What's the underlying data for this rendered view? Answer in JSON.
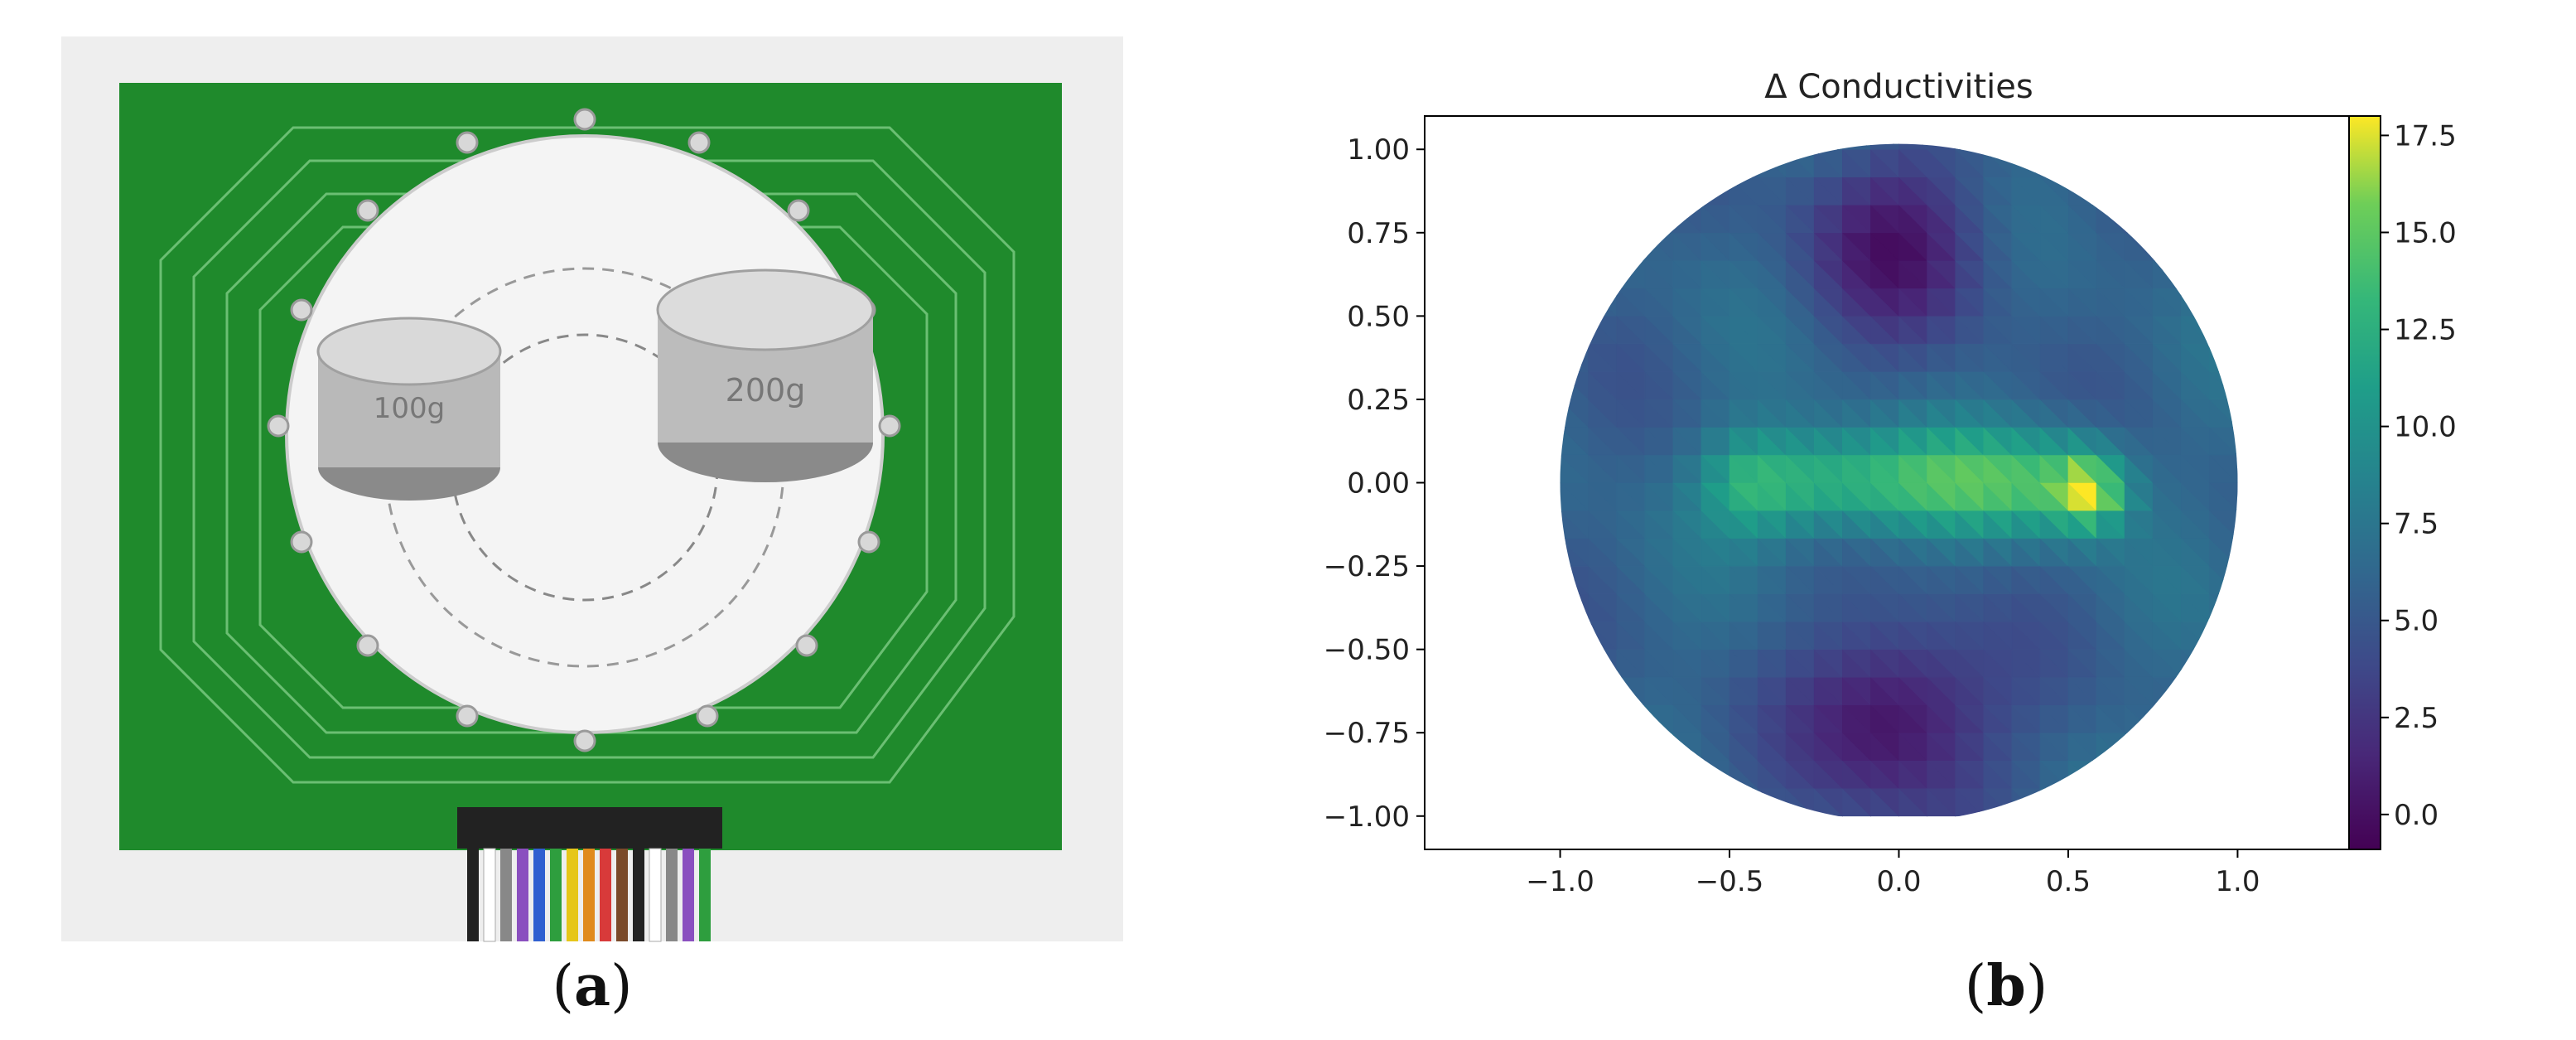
{
  "figure": {
    "panel_a": {
      "caption_open": "(",
      "caption_letter": "a",
      "caption_close": ")",
      "photo": {
        "weight_left_label": "100g",
        "weight_right_label": "200g"
      }
    },
    "panel_b": {
      "caption_open": "(",
      "caption_letter": "b",
      "caption_close": ")"
    }
  },
  "colors": {
    "pcb_green": "#1f8a2c",
    "pcb_trace": "#6bbf73",
    "plate_white": "#f4f4f4",
    "background_gray": "#eeeeee"
  },
  "chart_data": {
    "type": "heatmap",
    "title": "Δ Conductivities",
    "xlabel": "",
    "ylabel": "",
    "xlim": [
      -1.4,
      1.4
    ],
    "ylim": [
      -1.1,
      1.1
    ],
    "x_ticks": [
      "−1.0",
      "−0.5",
      "0.0",
      "0.5",
      "1.0"
    ],
    "x_tick_values": [
      -1.0,
      -0.5,
      0.0,
      0.5,
      1.0
    ],
    "y_ticks": [
      "1.00",
      "0.75",
      "0.50",
      "0.25",
      "0.00",
      "−0.25",
      "−0.50",
      "−0.75",
      "−1.00"
    ],
    "y_tick_values": [
      1.0,
      0.75,
      0.5,
      0.25,
      0.0,
      -0.25,
      -0.5,
      -0.75,
      -1.0
    ],
    "colorbar": {
      "min": -0.9,
      "max": 18.0,
      "ticks": [
        "0.0",
        "2.5",
        "5.0",
        "7.5",
        "10.0",
        "12.5",
        "15.0",
        "17.5"
      ],
      "tick_values": [
        0.0,
        2.5,
        5.0,
        7.5,
        10.0,
        12.5,
        15.0,
        17.5
      ],
      "colormap": "viridis"
    },
    "domain": "unit circle",
    "grid": false,
    "features": [
      {
        "region": "horizontal band",
        "center_x": 0.0,
        "center_y": 0.0,
        "value": 14.5
      },
      {
        "region": "right hotspot",
        "center_x": 0.57,
        "center_y": -0.03,
        "value": 18.0
      },
      {
        "region": "upper low",
        "center_x": 0.0,
        "center_y": 0.72,
        "value": 1.5
      },
      {
        "region": "lower low",
        "center_x": 0.0,
        "center_y": -0.7,
        "value": -0.5
      }
    ]
  }
}
